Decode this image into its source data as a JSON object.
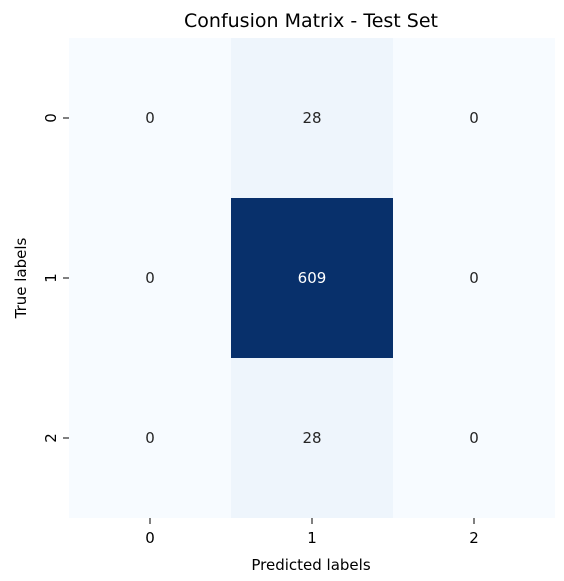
{
  "chart_data": {
    "type": "heatmap",
    "title": "Confusion Matrix - Test Set",
    "xlabel": "Predicted labels",
    "ylabel": "True labels",
    "x_categories": [
      "0",
      "1",
      "2"
    ],
    "y_categories": [
      "0",
      "1",
      "2"
    ],
    "values": [
      [
        0,
        28,
        0
      ],
      [
        0,
        609,
        0
      ],
      [
        0,
        28,
        0
      ]
    ],
    "colormap": "Blues",
    "vmin": 0,
    "vmax": 609,
    "colorbar": false,
    "grid": false
  }
}
